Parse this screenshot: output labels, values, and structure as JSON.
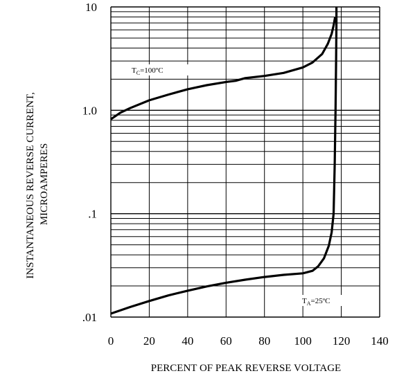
{
  "chart_data": {
    "type": "line",
    "title": "",
    "xlabel": "PERCENT OF PEAK REVERSE VOLTAGE",
    "ylabel_lines": [
      "INSTANTANEOUS REVERSE CURRENT,",
      "MICROAMPERES"
    ],
    "xlim": [
      0,
      140
    ],
    "ylim": [
      0.01,
      10
    ],
    "yscale": "log",
    "grid": true,
    "x_ticks": [
      0,
      20,
      40,
      60,
      80,
      100,
      120,
      140
    ],
    "x_tick_labels": [
      "0",
      "20",
      "40",
      "60",
      "80",
      "100",
      "120",
      "140"
    ],
    "y_ticks": [
      0.01,
      0.1,
      1,
      10
    ],
    "y_tick_labels": [
      ".01",
      ".1",
      "1.0",
      "10"
    ],
    "series": [
      {
        "name": "TC=100ºC",
        "x": [
          0,
          5,
          10,
          20,
          30,
          40,
          50,
          60,
          65,
          70,
          80,
          90,
          100,
          105,
          110,
          113,
          115,
          116,
          116.8
        ],
        "y": [
          0.82,
          0.95,
          1.05,
          1.25,
          1.42,
          1.6,
          1.75,
          1.88,
          1.93,
          2.05,
          2.15,
          2.3,
          2.6,
          2.9,
          3.5,
          4.4,
          5.5,
          6.6,
          8.0
        ]
      },
      {
        "name": "TA=25ºC",
        "x": [
          0,
          10,
          20,
          30,
          40,
          50,
          60,
          70,
          80,
          90,
          100,
          105,
          108,
          111,
          113.5,
          115,
          116,
          116.6,
          117,
          117.3,
          117.5,
          117.5
        ],
        "y": [
          0.0108,
          0.0125,
          0.0143,
          0.0162,
          0.018,
          0.0198,
          0.0215,
          0.023,
          0.0244,
          0.0256,
          0.0265,
          0.028,
          0.031,
          0.037,
          0.049,
          0.066,
          0.1,
          0.3,
          1.0,
          3.0,
          7.0,
          10
        ]
      }
    ],
    "annotations": [
      {
        "main": "T",
        "sub": "C",
        "rest": "=100ºC",
        "series": 0
      },
      {
        "main": "T",
        "sub": "A",
        "rest": "=25ºC",
        "series": 1
      }
    ]
  }
}
